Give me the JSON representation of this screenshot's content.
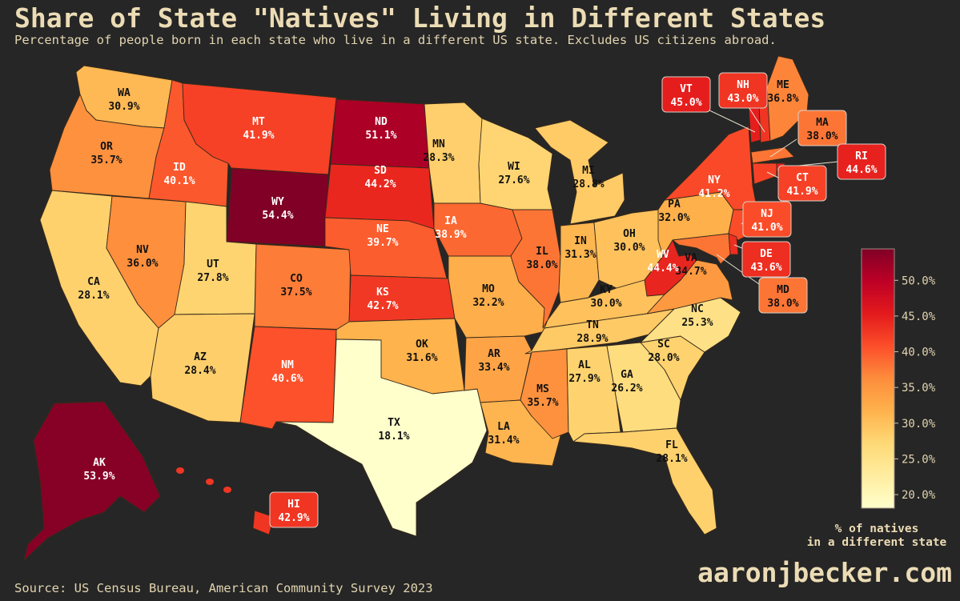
{
  "title": "Share of State \"Natives\" Living in Different States",
  "subtitle": "Percentage of people born in each state who live in a different US state. Excludes US citizens abroad.",
  "source": "Source: US Census Bureau, American Community Survey 2023",
  "site": "aaronjbecker.com",
  "colorbar": {
    "label_line1": "% of natives",
    "label_line2": "in a different state",
    "min": 18.1,
    "max": 54.4,
    "ticks": [
      "20.0%",
      "25.0%",
      "30.0%",
      "35.0%",
      "40.0%",
      "45.0%",
      "50.0%"
    ],
    "tick_values": [
      20,
      25,
      30,
      35,
      40,
      45,
      50
    ],
    "colormap": "YlOrRd"
  },
  "colors": {
    "background": "#262626",
    "title": "#ecdcb5",
    "state_border": "#3a2a1a",
    "label_box_border": "#d8d0c8"
  },
  "chart_data": {
    "type": "choropleth",
    "unit": "%",
    "states": [
      {
        "abbr": "WA",
        "value": 30.9,
        "label": "30.9%"
      },
      {
        "abbr": "OR",
        "value": 35.7,
        "label": "35.7%"
      },
      {
        "abbr": "CA",
        "value": 28.1,
        "label": "28.1%"
      },
      {
        "abbr": "NV",
        "value": 36.0,
        "label": "36.0%"
      },
      {
        "abbr": "ID",
        "value": 40.1,
        "label": "40.1%"
      },
      {
        "abbr": "MT",
        "value": 41.9,
        "label": "41.9%"
      },
      {
        "abbr": "WY",
        "value": 54.4,
        "label": "54.4%"
      },
      {
        "abbr": "UT",
        "value": 27.8,
        "label": "27.8%"
      },
      {
        "abbr": "AZ",
        "value": 28.4,
        "label": "28.4%"
      },
      {
        "abbr": "CO",
        "value": 37.5,
        "label": "37.5%"
      },
      {
        "abbr": "NM",
        "value": 40.6,
        "label": "40.6%"
      },
      {
        "abbr": "ND",
        "value": 51.1,
        "label": "51.1%"
      },
      {
        "abbr": "SD",
        "value": 44.2,
        "label": "44.2%"
      },
      {
        "abbr": "NE",
        "value": 39.7,
        "label": "39.7%"
      },
      {
        "abbr": "KS",
        "value": 42.7,
        "label": "42.7%"
      },
      {
        "abbr": "OK",
        "value": 31.6,
        "label": "31.6%"
      },
      {
        "abbr": "TX",
        "value": 18.1,
        "label": "18.1%"
      },
      {
        "abbr": "MN",
        "value": 28.3,
        "label": "28.3%"
      },
      {
        "abbr": "IA",
        "value": 38.9,
        "label": "38.9%"
      },
      {
        "abbr": "MO",
        "value": 32.2,
        "label": "32.2%"
      },
      {
        "abbr": "AR",
        "value": 33.4,
        "label": "33.4%"
      },
      {
        "abbr": "LA",
        "value": 31.4,
        "label": "31.4%"
      },
      {
        "abbr": "WI",
        "value": 27.6,
        "label": "27.6%"
      },
      {
        "abbr": "IL",
        "value": 38.0,
        "label": "38.0%"
      },
      {
        "abbr": "MI",
        "value": 28.8,
        "label": "28.8%"
      },
      {
        "abbr": "IN",
        "value": 31.3,
        "label": "31.3%"
      },
      {
        "abbr": "OH",
        "value": 30.0,
        "label": "30.0%"
      },
      {
        "abbr": "KY",
        "value": 30.0,
        "label": "30.0%"
      },
      {
        "abbr": "TN",
        "value": 28.9,
        "label": "28.9%"
      },
      {
        "abbr": "MS",
        "value": 35.7,
        "label": "35.7%"
      },
      {
        "abbr": "AL",
        "value": 27.9,
        "label": "27.9%"
      },
      {
        "abbr": "GA",
        "value": 26.2,
        "label": "26.2%"
      },
      {
        "abbr": "FL",
        "value": 28.1,
        "label": "28.1%"
      },
      {
        "abbr": "SC",
        "value": 28.0,
        "label": "28.0%"
      },
      {
        "abbr": "NC",
        "value": 25.3,
        "label": "25.3%"
      },
      {
        "abbr": "VA",
        "value": 34.7,
        "label": "34.7%"
      },
      {
        "abbr": "WV",
        "value": 44.4,
        "label": "44.4%"
      },
      {
        "abbr": "PA",
        "value": 32.0,
        "label": "32.0%"
      },
      {
        "abbr": "NY",
        "value": 41.2,
        "label": "41.2%"
      },
      {
        "abbr": "VT",
        "value": 45.0,
        "label": "45.0%"
      },
      {
        "abbr": "NH",
        "value": 43.0,
        "label": "43.0%"
      },
      {
        "abbr": "ME",
        "value": 36.8,
        "label": "36.8%"
      },
      {
        "abbr": "MA",
        "value": 38.0,
        "label": "38.0%"
      },
      {
        "abbr": "RI",
        "value": 44.6,
        "label": "44.6%"
      },
      {
        "abbr": "CT",
        "value": 41.9,
        "label": "41.9%"
      },
      {
        "abbr": "NJ",
        "value": 41.0,
        "label": "41.0%"
      },
      {
        "abbr": "DE",
        "value": 43.6,
        "label": "43.6%"
      },
      {
        "abbr": "MD",
        "value": 38.0,
        "label": "38.0%"
      },
      {
        "abbr": "AK",
        "value": 53.9,
        "label": "53.9%"
      },
      {
        "abbr": "HI",
        "value": 42.9,
        "label": "42.9%"
      }
    ]
  }
}
